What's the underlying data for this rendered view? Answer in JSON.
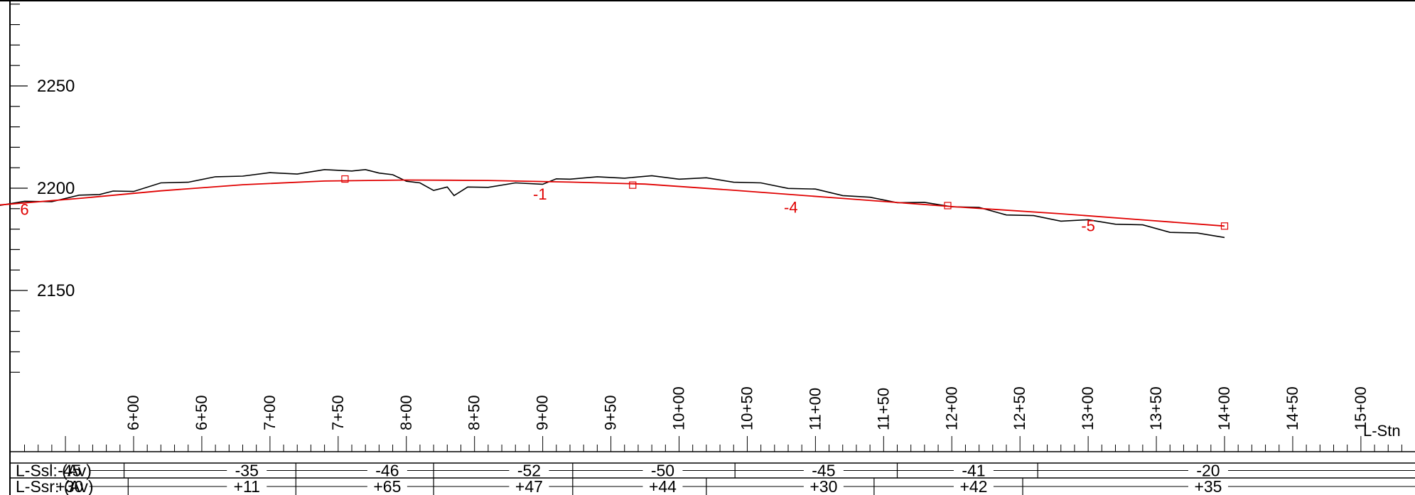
{
  "chart_data": {
    "type": "line",
    "title": "",
    "xlabel": "L-Stn",
    "ylabel": "",
    "xlim": [
      436,
      1540
    ],
    "ylim": [
      2110,
      2292
    ],
    "yticks": [
      2250,
      2200,
      2150
    ],
    "ytick_labels": [
      "2250",
      "2200",
      "2150"
    ],
    "x_ticks": [
      600,
      650,
      700,
      750,
      800,
      850,
      900,
      950,
      1000,
      1050,
      1100,
      1150,
      1200,
      1250,
      1300,
      1350,
      1400,
      1450,
      1500
    ],
    "x_tick_labels": [
      "6+00",
      "6+50",
      "7+00",
      "7+50",
      "8+00",
      "8+50",
      "9+00",
      "9+50",
      "10+00",
      "10+50",
      "11+00",
      "11+50",
      "12+00",
      "12+50",
      "13+00",
      "13+50",
      "14+00",
      "14+50",
      "15+00"
    ],
    "series": [
      {
        "color": "#000000",
        "x": [
          436,
          460,
          480,
          500,
          520,
          540,
          560,
          575,
          585,
          600,
          620,
          640,
          660,
          680,
          700,
          720,
          740,
          760,
          770,
          780,
          790,
          800,
          810,
          820,
          830,
          835,
          845,
          860,
          880,
          900,
          910,
          920,
          940,
          960,
          980,
          1000,
          1020,
          1040,
          1060,
          1080,
          1100,
          1120,
          1140,
          1160,
          1180,
          1200,
          1220,
          1240,
          1260,
          1280,
          1300,
          1320,
          1340,
          1360,
          1380,
          1400
        ],
        "y": [
          2189,
          2190,
          2191,
          2192,
          2193,
          2194,
          2196,
          2197.5,
          2198,
          2199,
          2202,
          2203.5,
          2205,
          2206.5,
          2207,
          2207.5,
          2208.5,
          2209,
          2208.5,
          2208,
          2206,
          2204,
          2202,
          2199.5,
          2200,
          2197,
          2200,
          2201,
          2202,
          2202.5,
          2204,
          2205,
          2205,
          2205.5,
          2205.5,
          2205,
          2204.5,
          2203.5,
          2202,
          2200.5,
          2199,
          2197,
          2195,
          2193.5,
          2192.5,
          2191.5,
          2190,
          2187.5,
          2186,
          2184.5,
          2184,
          2183,
          2181.5,
          2179,
          2177.5,
          2176.5
        ]
      },
      {
        "color": "#e00000",
        "x": [
          436,
          500,
          560,
          620,
          680,
          740,
          800,
          860,
          920,
          975,
          1040,
          1120,
          1200,
          1280,
          1340,
          1400
        ],
        "y": [
          2188.5,
          2191.7,
          2195,
          2198.7,
          2201.7,
          2203.5,
          2204,
          2203.8,
          2203,
          2202,
          2199,
          2195,
          2191,
          2187.5,
          2184.5,
          2181.5
        ]
      }
    ],
    "pvi_markers": [
      {
        "x": 755,
        "y": 2204.5
      },
      {
        "x": 966,
        "y": 2201.5
      },
      {
        "x": 1197,
        "y": 2191.5
      },
      {
        "x": 1400,
        "y": 2181.5
      }
    ],
    "grade_labels": [
      {
        "text": "6",
        "x": 520,
        "y": 2187
      },
      {
        "text": "-1",
        "x": 898,
        "y": 2194.5
      },
      {
        "text": "-4",
        "x": 1082,
        "y": 2188
      },
      {
        "text": "-5",
        "x": 1300,
        "y": 2179
      }
    ],
    "bands": [
      {
        "label": "L-Ssl: (Av)",
        "values": [
          {
            "text": "-45",
            "x": 553
          },
          {
            "text": "-35",
            "x": 683
          },
          {
            "text": "-46",
            "x": 786
          },
          {
            "text": "-52",
            "x": 890
          },
          {
            "text": "-50",
            "x": 988
          },
          {
            "text": "-45",
            "x": 1106
          },
          {
            "text": "-41",
            "x": 1216
          },
          {
            "text": "-20",
            "x": 1388
          }
        ],
        "dividers": [
          593,
          719,
          820,
          922,
          1041,
          1160,
          1263
        ]
      },
      {
        "label": "L-Ssr: (Av)",
        "values": [
          {
            "text": "+30",
            "x": 553
          },
          {
            "text": "+11",
            "x": 683
          },
          {
            "text": "+65",
            "x": 786
          },
          {
            "text": "+47",
            "x": 890
          },
          {
            "text": "+44",
            "x": 988
          },
          {
            "text": "+30",
            "x": 1106
          },
          {
            "text": "+42",
            "x": 1216
          },
          {
            "text": "+35",
            "x": 1388
          }
        ],
        "dividers": [
          596,
          719,
          820,
          922,
          1020,
          1143,
          1252
        ]
      }
    ]
  }
}
